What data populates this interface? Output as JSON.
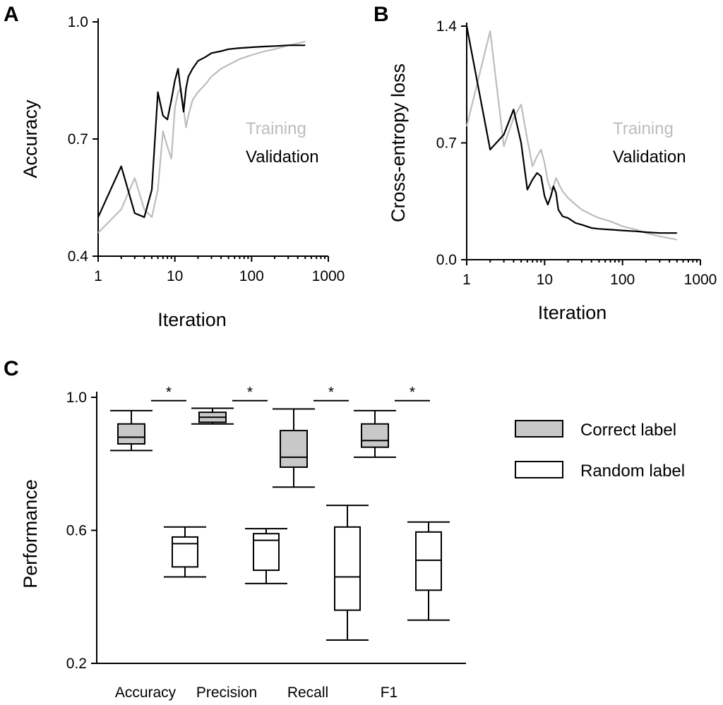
{
  "chart_data": [
    {
      "panel": "A",
      "type": "line",
      "xscale": "log",
      "xlim": [
        1,
        1000
      ],
      "ylim": [
        0.4,
        1.0
      ],
      "xticks": [
        "1",
        "10",
        "100",
        "1000"
      ],
      "yticks": [
        "0.4",
        "0.7",
        "1.0"
      ],
      "xlabel": "Iteration",
      "ylabel": "Accuracy",
      "series": [
        {
          "name": "Training",
          "color": "#bdbdbd",
          "points": [
            [
              1,
              0.46
            ],
            [
              2,
              0.52
            ],
            [
              3,
              0.6
            ],
            [
              4,
              0.52
            ],
            [
              5,
              0.5
            ],
            [
              6,
              0.57
            ],
            [
              7,
              0.72
            ],
            [
              8,
              0.68
            ],
            [
              9,
              0.65
            ],
            [
              10,
              0.78
            ],
            [
              11,
              0.82
            ],
            [
              12,
              0.83
            ],
            [
              13,
              0.78
            ],
            [
              14,
              0.73
            ],
            [
              15,
              0.76
            ],
            [
              17,
              0.8
            ],
            [
              20,
              0.82
            ],
            [
              25,
              0.84
            ],
            [
              30,
              0.86
            ],
            [
              40,
              0.88
            ],
            [
              50,
              0.89
            ],
            [
              70,
              0.905
            ],
            [
              100,
              0.915
            ],
            [
              150,
              0.925
            ],
            [
              200,
              0.93
            ],
            [
              300,
              0.94
            ],
            [
              400,
              0.945
            ],
            [
              500,
              0.95
            ]
          ]
        },
        {
          "name": "Validation",
          "color": "#000000",
          "points": [
            [
              1,
              0.5
            ],
            [
              2,
              0.63
            ],
            [
              3,
              0.51
            ],
            [
              4,
              0.5
            ],
            [
              5,
              0.57
            ],
            [
              6,
              0.82
            ],
            [
              7,
              0.76
            ],
            [
              8,
              0.75
            ],
            [
              9,
              0.8
            ],
            [
              10,
              0.85
            ],
            [
              11,
              0.88
            ],
            [
              12,
              0.82
            ],
            [
              13,
              0.77
            ],
            [
              14,
              0.83
            ],
            [
              15,
              0.86
            ],
            [
              17,
              0.88
            ],
            [
              20,
              0.9
            ],
            [
              25,
              0.91
            ],
            [
              30,
              0.92
            ],
            [
              40,
              0.925
            ],
            [
              50,
              0.93
            ],
            [
              70,
              0.933
            ],
            [
              100,
              0.935
            ],
            [
              150,
              0.937
            ],
            [
              200,
              0.938
            ],
            [
              300,
              0.94
            ],
            [
              500,
              0.94
            ]
          ]
        }
      ]
    },
    {
      "panel": "B",
      "type": "line",
      "xscale": "log",
      "xlim": [
        1,
        1000
      ],
      "ylim": [
        0.0,
        1.4
      ],
      "xticks": [
        "1",
        "10",
        "100",
        "1000"
      ],
      "yticks": [
        "0.0",
        "0.7",
        "1.4"
      ],
      "xlabel": "Iteration",
      "ylabel": "Cross-entropy loss",
      "series": [
        {
          "name": "Training",
          "color": "#bdbdbd",
          "points": [
            [
              1,
              0.8
            ],
            [
              2,
              1.37
            ],
            [
              3,
              0.68
            ],
            [
              4,
              0.85
            ],
            [
              5,
              0.93
            ],
            [
              6,
              0.72
            ],
            [
              7,
              0.56
            ],
            [
              8,
              0.62
            ],
            [
              9,
              0.66
            ],
            [
              10,
              0.58
            ],
            [
              11,
              0.47
            ],
            [
              12,
              0.42
            ],
            [
              13,
              0.44
            ],
            [
              14,
              0.49
            ],
            [
              15,
              0.46
            ],
            [
              17,
              0.41
            ],
            [
              20,
              0.37
            ],
            [
              25,
              0.33
            ],
            [
              30,
              0.3
            ],
            [
              40,
              0.27
            ],
            [
              50,
              0.25
            ],
            [
              70,
              0.23
            ],
            [
              100,
              0.2
            ],
            [
              150,
              0.18
            ],
            [
              200,
              0.16
            ],
            [
              300,
              0.14
            ],
            [
              500,
              0.12
            ]
          ]
        },
        {
          "name": "Validation",
          "color": "#000000",
          "points": [
            [
              1,
              1.4
            ],
            [
              2,
              0.66
            ],
            [
              3,
              0.75
            ],
            [
              4,
              0.9
            ],
            [
              5,
              0.7
            ],
            [
              6,
              0.42
            ],
            [
              7,
              0.48
            ],
            [
              8,
              0.52
            ],
            [
              9,
              0.5
            ],
            [
              10,
              0.38
            ],
            [
              11,
              0.33
            ],
            [
              12,
              0.38
            ],
            [
              13,
              0.44
            ],
            [
              14,
              0.4
            ],
            [
              15,
              0.3
            ],
            [
              17,
              0.26
            ],
            [
              20,
              0.25
            ],
            [
              25,
              0.22
            ],
            [
              30,
              0.21
            ],
            [
              40,
              0.19
            ],
            [
              50,
              0.185
            ],
            [
              70,
              0.18
            ],
            [
              100,
              0.175
            ],
            [
              150,
              0.17
            ],
            [
              200,
              0.165
            ],
            [
              300,
              0.16
            ],
            [
              500,
              0.16
            ]
          ]
        }
      ]
    },
    {
      "panel": "C",
      "type": "box",
      "ylim": [
        0.2,
        1.0
      ],
      "yticks": [
        "0.2",
        "0.6",
        "1.0"
      ],
      "ylabel": "Performance",
      "categories": [
        "Accuracy",
        "Precision",
        "Recall",
        "F1"
      ],
      "significance": [
        "*",
        "*",
        "*",
        "*"
      ],
      "series": [
        {
          "name": "Correct label",
          "fill": "#c8c8c8",
          "boxes": [
            {
              "whisker_low": 0.84,
              "q1": 0.86,
              "median": 0.88,
              "q3": 0.92,
              "whisker_high": 0.96
            },
            {
              "whisker_low": 0.92,
              "q1": 0.925,
              "median": 0.94,
              "q3": 0.955,
              "whisker_high": 0.967
            },
            {
              "whisker_low": 0.73,
              "q1": 0.79,
              "median": 0.82,
              "q3": 0.9,
              "whisker_high": 0.965
            },
            {
              "whisker_low": 0.82,
              "q1": 0.85,
              "median": 0.87,
              "q3": 0.92,
              "whisker_high": 0.96
            }
          ]
        },
        {
          "name": "Random label",
          "fill": "#ffffff",
          "boxes": [
            {
              "whisker_low": 0.46,
              "q1": 0.49,
              "median": 0.56,
              "q3": 0.58,
              "whisker_high": 0.61
            },
            {
              "whisker_low": 0.44,
              "q1": 0.48,
              "median": 0.57,
              "q3": 0.59,
              "whisker_high": 0.605
            },
            {
              "whisker_low": 0.27,
              "q1": 0.36,
              "median": 0.46,
              "q3": 0.61,
              "whisker_high": 0.675
            },
            {
              "whisker_low": 0.33,
              "q1": 0.42,
              "median": 0.51,
              "q3": 0.595,
              "whisker_high": 0.625
            }
          ]
        }
      ]
    }
  ]
}
